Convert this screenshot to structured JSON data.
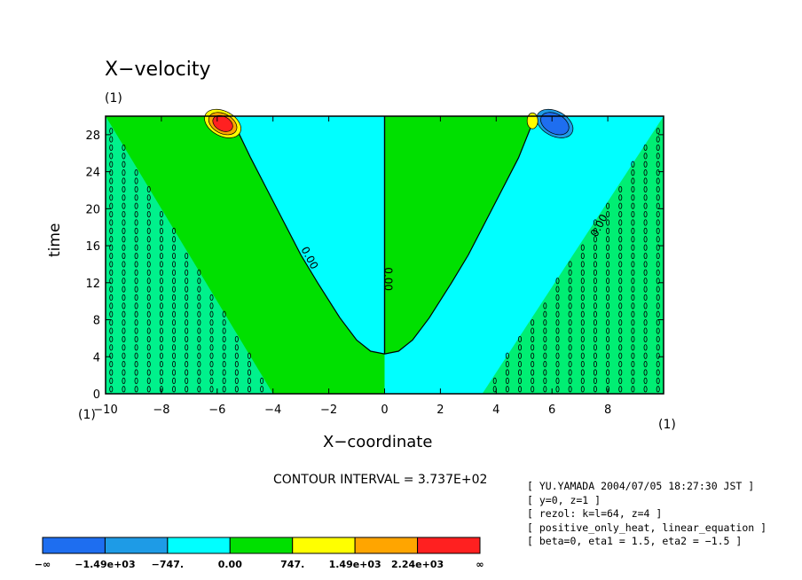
{
  "chart_data": {
    "type": "heatmap",
    "title": "X−velocity",
    "title_units": "(1)",
    "xlabel": "X−coordinate",
    "ylabel": "time",
    "x_units": "(1)",
    "x_origin_units": "(1)",
    "xlim": [
      -10,
      10
    ],
    "ylim": [
      0,
      30
    ],
    "x_ticks": [
      -10,
      -8,
      -6,
      -4,
      -2,
      0,
      2,
      4,
      6,
      8
    ],
    "x_tick_labels": [
      "−10",
      "−8",
      "−6",
      "−4",
      "−2",
      "0",
      "2",
      "4",
      "6",
      "8"
    ],
    "y_ticks": [
      0,
      4,
      8,
      12,
      16,
      20,
      24,
      28
    ],
    "y_tick_labels": [
      "0",
      "4",
      "8",
      "12",
      "16",
      "20",
      "24",
      "28"
    ],
    "contour_labels": [
      {
        "text": "0.00",
        "x": -2.8,
        "y": 14.5
      },
      {
        "text": "0.00",
        "x": 0.0,
        "y": 12.4
      },
      {
        "text": "0.00",
        "x": 7.8,
        "y": 18.0
      }
    ],
    "zero_contour_center": [
      [
        0,
        4.3
      ],
      [
        0,
        30
      ]
    ],
    "zero_contour_left": [
      [
        0,
        4.3
      ],
      [
        -0.5,
        4.6
      ],
      [
        -1.0,
        5.8
      ],
      [
        -1.6,
        8.2
      ],
      [
        -2.4,
        12.0
      ],
      [
        -3.0,
        15.0
      ],
      [
        -3.6,
        18.5
      ],
      [
        -4.2,
        22.0
      ],
      [
        -4.8,
        25.5
      ],
      [
        -5.2,
        28.0
      ],
      [
        -5.4,
        30
      ]
    ],
    "zero_contour_right": [
      [
        0,
        4.3
      ],
      [
        0.5,
        4.6
      ],
      [
        1.0,
        5.8
      ],
      [
        1.6,
        8.2
      ],
      [
        2.4,
        12.0
      ],
      [
        3.0,
        15.0
      ],
      [
        3.6,
        18.5
      ],
      [
        4.2,
        22.0
      ],
      [
        4.8,
        25.5
      ],
      [
        5.0,
        27.0
      ],
      [
        5.4,
        30
      ]
    ],
    "contour_interval_text": "CONTOUR INTERVAL = 3.737E+02",
    "colorbar": {
      "colors": [
        "#1e6ef0",
        "#1e9be6",
        "#00ffff",
        "#00e000",
        "#ffff00",
        "#ffa500",
        "#ff2020"
      ],
      "labels": [
        "−∞",
        "−1.49e+03",
        "−747.",
        "0.00",
        "747.",
        "1.49e+03",
        "2.24e+03",
        "∞"
      ]
    },
    "colors": {
      "negative": "#00ffff",
      "positive": "#00e000",
      "contour": "#000000"
    }
  },
  "info_lines": [
    "[ YU.YAMADA 2004/07/05 18:27:30 JST ]",
    "[ y=0, z=1 ]",
    "[ rezol: k=l=64, z=4 ]",
    "[ positive_only_heat, linear_equation ]",
    "[ beta=0, eta1 = 1.5, eta2 = −1.5 ]"
  ]
}
